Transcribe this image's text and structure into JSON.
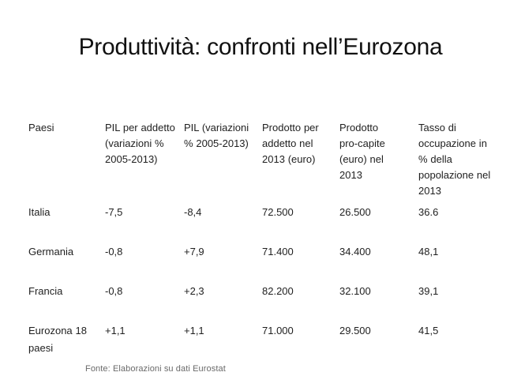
{
  "title": "Produttività: confronti nell’Eurozona",
  "table": {
    "headers": [
      "Paesi",
      "PIL per addetto (variazioni % 2005-2013)",
      "PIL (variazioni % 2005-2013)",
      "Prodotto per addetto nel 2013 (euro)",
      "Prodotto pro-capite (euro) nel 2013",
      "Tasso di occupazione in % della popolazione nel 2013"
    ],
    "rows": [
      {
        "country": "Italia",
        "values": [
          "-7,5",
          "-8,4",
          "72.500",
          "26.500",
          "36.6"
        ]
      },
      {
        "country": "Germania",
        "values": [
          "-0,8",
          "+7,9",
          "71.400",
          "34.400",
          "48,1"
        ]
      },
      {
        "country": "Francia",
        "values": [
          "-0,8",
          "+2,3",
          "82.200",
          "32.100",
          "39,1"
        ]
      },
      {
        "country": "Eurozona 18 paesi",
        "values": [
          "+1,1",
          "+1,1",
          "71.000",
          "29.500",
          "41,5"
        ]
      }
    ]
  },
  "footer": {
    "source_note": "Fonte: Elaborazioni su dati Eurostat"
  },
  "colors": {
    "text": "#1f1f1f",
    "muted_text": "#6a6a6a",
    "background": "#ffffff"
  }
}
